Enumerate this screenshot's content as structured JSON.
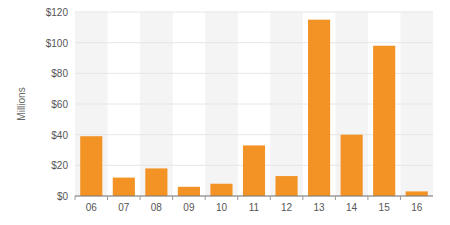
{
  "chart_data": {
    "type": "bar",
    "ylabel": "Millions",
    "categories": [
      "06",
      "07",
      "08",
      "09",
      "10",
      "11",
      "12",
      "13",
      "14",
      "15",
      "16"
    ],
    "values": [
      39,
      12,
      18,
      6,
      8,
      33,
      13,
      115,
      40,
      98,
      3
    ],
    "color": "#f39325",
    "ylim": [
      0,
      120
    ],
    "yticks": [
      {
        "value": 0,
        "label": "$0"
      },
      {
        "value": 20,
        "label": "$20"
      },
      {
        "value": 40,
        "label": "$40"
      },
      {
        "value": 60,
        "label": "$60"
      },
      {
        "value": 80,
        "label": "$80"
      },
      {
        "value": 100,
        "label": "$100"
      },
      {
        "value": 120,
        "label": "$120"
      }
    ],
    "grid": true
  }
}
